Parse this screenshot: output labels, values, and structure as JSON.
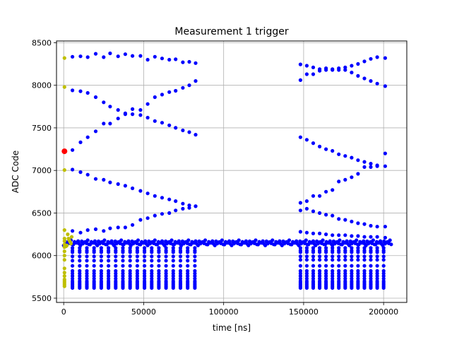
{
  "chart_data": {
    "type": "scatter",
    "title": "Measurement 1 trigger",
    "xlabel": "time [ns]",
    "ylabel": "ADC Code",
    "xlim": [
      -4500,
      214500
    ],
    "ylim": [
      5450,
      8520
    ],
    "xticks": [
      0,
      50000,
      100000,
      150000,
      200000
    ],
    "xtick_labels": [
      "0",
      "50000",
      "100000",
      "150000",
      "200000"
    ],
    "yticks": [
      5500,
      6000,
      6500,
      7000,
      7500,
      8000,
      8500
    ],
    "ytick_labels": [
      "5500",
      "6000",
      "6500",
      "7000",
      "7500",
      "8000",
      "8500"
    ],
    "grid": true,
    "colors": {
      "blue": "#0000ff",
      "yellow": "#bfbf00",
      "red": "#ff0000"
    },
    "series": [
      {
        "color": "#0000ff",
        "marker": "dot",
        "points": [
          [
            5500,
            8335
          ],
          [
            10500,
            8340
          ],
          [
            15000,
            8330
          ],
          [
            20000,
            8370
          ],
          [
            25000,
            8330
          ],
          [
            29000,
            8375
          ],
          [
            34000,
            8340
          ],
          [
            38500,
            8365
          ],
          [
            43000,
            8345
          ],
          [
            48000,
            8345
          ],
          [
            52500,
            8300
          ],
          [
            57000,
            8335
          ],
          [
            61500,
            8315
          ],
          [
            66000,
            8300
          ],
          [
            70000,
            8305
          ],
          [
            74500,
            8270
          ],
          [
            78500,
            8275
          ],
          [
            82500,
            8260
          ],
          [
            5500,
            7940
          ],
          [
            10500,
            7930
          ],
          [
            15000,
            7910
          ],
          [
            20000,
            7860
          ],
          [
            25000,
            7800
          ],
          [
            29000,
            7750
          ],
          [
            34000,
            7710
          ],
          [
            38500,
            7670
          ],
          [
            43000,
            7660
          ],
          [
            48000,
            7710
          ],
          [
            52500,
            7780
          ],
          [
            57000,
            7860
          ],
          [
            61500,
            7890
          ],
          [
            66000,
            7920
          ],
          [
            70000,
            7935
          ],
          [
            74500,
            7970
          ],
          [
            78500,
            8000
          ],
          [
            82500,
            8050
          ],
          [
            5500,
            7240
          ],
          [
            10500,
            7330
          ],
          [
            15000,
            7390
          ],
          [
            20000,
            7460
          ],
          [
            25000,
            7550
          ],
          [
            29000,
            7550
          ],
          [
            34000,
            7610
          ],
          [
            38500,
            7660
          ],
          [
            43000,
            7720
          ],
          [
            48000,
            7650
          ],
          [
            52500,
            7620
          ],
          [
            57000,
            7580
          ],
          [
            61500,
            7560
          ],
          [
            66000,
            7530
          ],
          [
            70000,
            7500
          ],
          [
            74500,
            7470
          ],
          [
            78500,
            7450
          ],
          [
            82500,
            7420
          ],
          [
            5500,
            7010
          ],
          [
            10500,
            6980
          ],
          [
            15000,
            6950
          ],
          [
            20000,
            6900
          ],
          [
            25000,
            6890
          ],
          [
            29000,
            6860
          ],
          [
            34000,
            6840
          ],
          [
            38500,
            6820
          ],
          [
            43000,
            6790
          ],
          [
            48000,
            6760
          ],
          [
            52500,
            6730
          ],
          [
            57000,
            6700
          ],
          [
            61500,
            6680
          ],
          [
            66000,
            6660
          ],
          [
            70000,
            6640
          ],
          [
            74500,
            6610
          ],
          [
            78500,
            6590
          ],
          [
            82500,
            6580
          ],
          [
            5500,
            6290
          ],
          [
            10500,
            6270
          ],
          [
            15000,
            6300
          ],
          [
            20000,
            6310
          ],
          [
            25000,
            6290
          ],
          [
            29000,
            6320
          ],
          [
            34000,
            6330
          ],
          [
            38500,
            6330
          ],
          [
            43000,
            6360
          ],
          [
            48000,
            6420
          ],
          [
            52500,
            6440
          ],
          [
            57000,
            6470
          ],
          [
            61500,
            6490
          ],
          [
            66000,
            6500
          ],
          [
            70000,
            6530
          ],
          [
            74500,
            6550
          ],
          [
            78500,
            6560
          ],
          [
            82500,
            6580
          ],
          [
            148000,
            8245
          ],
          [
            152000,
            8230
          ],
          [
            156000,
            8210
          ],
          [
            160000,
            8190
          ],
          [
            164000,
            8180
          ],
          [
            168000,
            8180
          ],
          [
            172000,
            8180
          ],
          [
            176000,
            8210
          ],
          [
            180000,
            8230
          ],
          [
            184000,
            8250
          ],
          [
            188000,
            8280
          ],
          [
            192000,
            8310
          ],
          [
            196000,
            8330
          ],
          [
            201000,
            8320
          ],
          [
            148000,
            8060
          ],
          [
            152000,
            8130
          ],
          [
            156000,
            8130
          ],
          [
            160000,
            8170
          ],
          [
            164000,
            8200
          ],
          [
            168000,
            8190
          ],
          [
            172000,
            8200
          ],
          [
            176000,
            8180
          ],
          [
            180000,
            8150
          ],
          [
            184000,
            8110
          ],
          [
            188000,
            8080
          ],
          [
            192000,
            8050
          ],
          [
            196000,
            8020
          ],
          [
            201000,
            7990
          ],
          [
            148000,
            7390
          ],
          [
            152000,
            7360
          ],
          [
            156000,
            7320
          ],
          [
            160000,
            7280
          ],
          [
            164000,
            7250
          ],
          [
            168000,
            7230
          ],
          [
            172000,
            7190
          ],
          [
            176000,
            7170
          ],
          [
            180000,
            7150
          ],
          [
            184000,
            7120
          ],
          [
            188000,
            7100
          ],
          [
            192000,
            7080
          ],
          [
            196000,
            7060
          ],
          [
            201000,
            7200
          ],
          [
            148000,
            6620
          ],
          [
            152000,
            6640
          ],
          [
            156000,
            6700
          ],
          [
            160000,
            6700
          ],
          [
            164000,
            6750
          ],
          [
            168000,
            6770
          ],
          [
            172000,
            6870
          ],
          [
            176000,
            6890
          ],
          [
            180000,
            6920
          ],
          [
            184000,
            6960
          ],
          [
            188000,
            7040
          ],
          [
            192000,
            7040
          ],
          [
            196000,
            7050
          ],
          [
            201000,
            7050
          ],
          [
            148000,
            6530
          ],
          [
            152000,
            6550
          ],
          [
            156000,
            6520
          ],
          [
            160000,
            6500
          ],
          [
            164000,
            6480
          ],
          [
            168000,
            6470
          ],
          [
            172000,
            6430
          ],
          [
            176000,
            6420
          ],
          [
            180000,
            6400
          ],
          [
            184000,
            6380
          ],
          [
            188000,
            6370
          ],
          [
            192000,
            6350
          ],
          [
            196000,
            6340
          ],
          [
            201000,
            6340
          ],
          [
            148000,
            6280
          ],
          [
            152000,
            6270
          ],
          [
            156000,
            6260
          ],
          [
            160000,
            6260
          ],
          [
            164000,
            6250
          ],
          [
            168000,
            6240
          ],
          [
            172000,
            6240
          ],
          [
            176000,
            6240
          ],
          [
            180000,
            6230
          ],
          [
            184000,
            6230
          ],
          [
            188000,
            6220
          ],
          [
            192000,
            6220
          ],
          [
            196000,
            6220
          ],
          [
            201000,
            6210
          ]
        ]
      },
      {
        "color": "#0000ff",
        "marker": "dot",
        "name": "",
        "bands": {
          "groups": [
            {
              "x_from": 5500,
              "x_to": 82500,
              "step": 4500,
              "levels": [
                6090,
                6060,
                6040,
                5990,
                5940,
                5880,
                5820,
                5790,
                5760,
                5730,
                5700,
                5680,
                5660,
                5640,
                5620
              ]
            },
            {
              "x_from": 148000,
              "x_to": 201000,
              "step": 4000,
              "levels": [
                6090,
                6060,
                6040,
                5990,
                5950,
                5880,
                5820,
                5790,
                5760,
                5730,
                5700,
                5680,
                5660,
                5640,
                5620
              ]
            }
          ],
          "baseline": {
            "x_from": 0,
            "x_to": 204000,
            "step": 1500,
            "center": 6150,
            "spread": 30
          }
        }
      },
      {
        "color": "#bfbf00",
        "marker": "dot",
        "points": [
          [
            500,
            8320
          ],
          [
            500,
            7980
          ],
          [
            500,
            7005
          ],
          [
            500,
            6300
          ],
          [
            500,
            6200
          ],
          [
            500,
            6170
          ],
          [
            500,
            6130
          ],
          [
            500,
            6100
          ],
          [
            500,
            6050
          ],
          [
            500,
            6000
          ],
          [
            500,
            5950
          ],
          [
            500,
            5850
          ],
          [
            500,
            5800
          ],
          [
            500,
            5760
          ],
          [
            500,
            5720
          ],
          [
            500,
            5700
          ],
          [
            500,
            5680
          ],
          [
            500,
            5660
          ],
          [
            500,
            5640
          ],
          [
            2500,
            6250
          ],
          [
            3000,
            6200
          ],
          [
            3500,
            6180
          ],
          [
            4000,
            6160
          ],
          [
            4500,
            6140
          ],
          [
            5000,
            6220
          ],
          [
            2000,
            6120
          ],
          [
            1500,
            6110
          ]
        ]
      },
      {
        "color": "#ff0000",
        "marker": "dot-large",
        "points": [
          [
            500,
            7225
          ]
        ]
      }
    ]
  }
}
